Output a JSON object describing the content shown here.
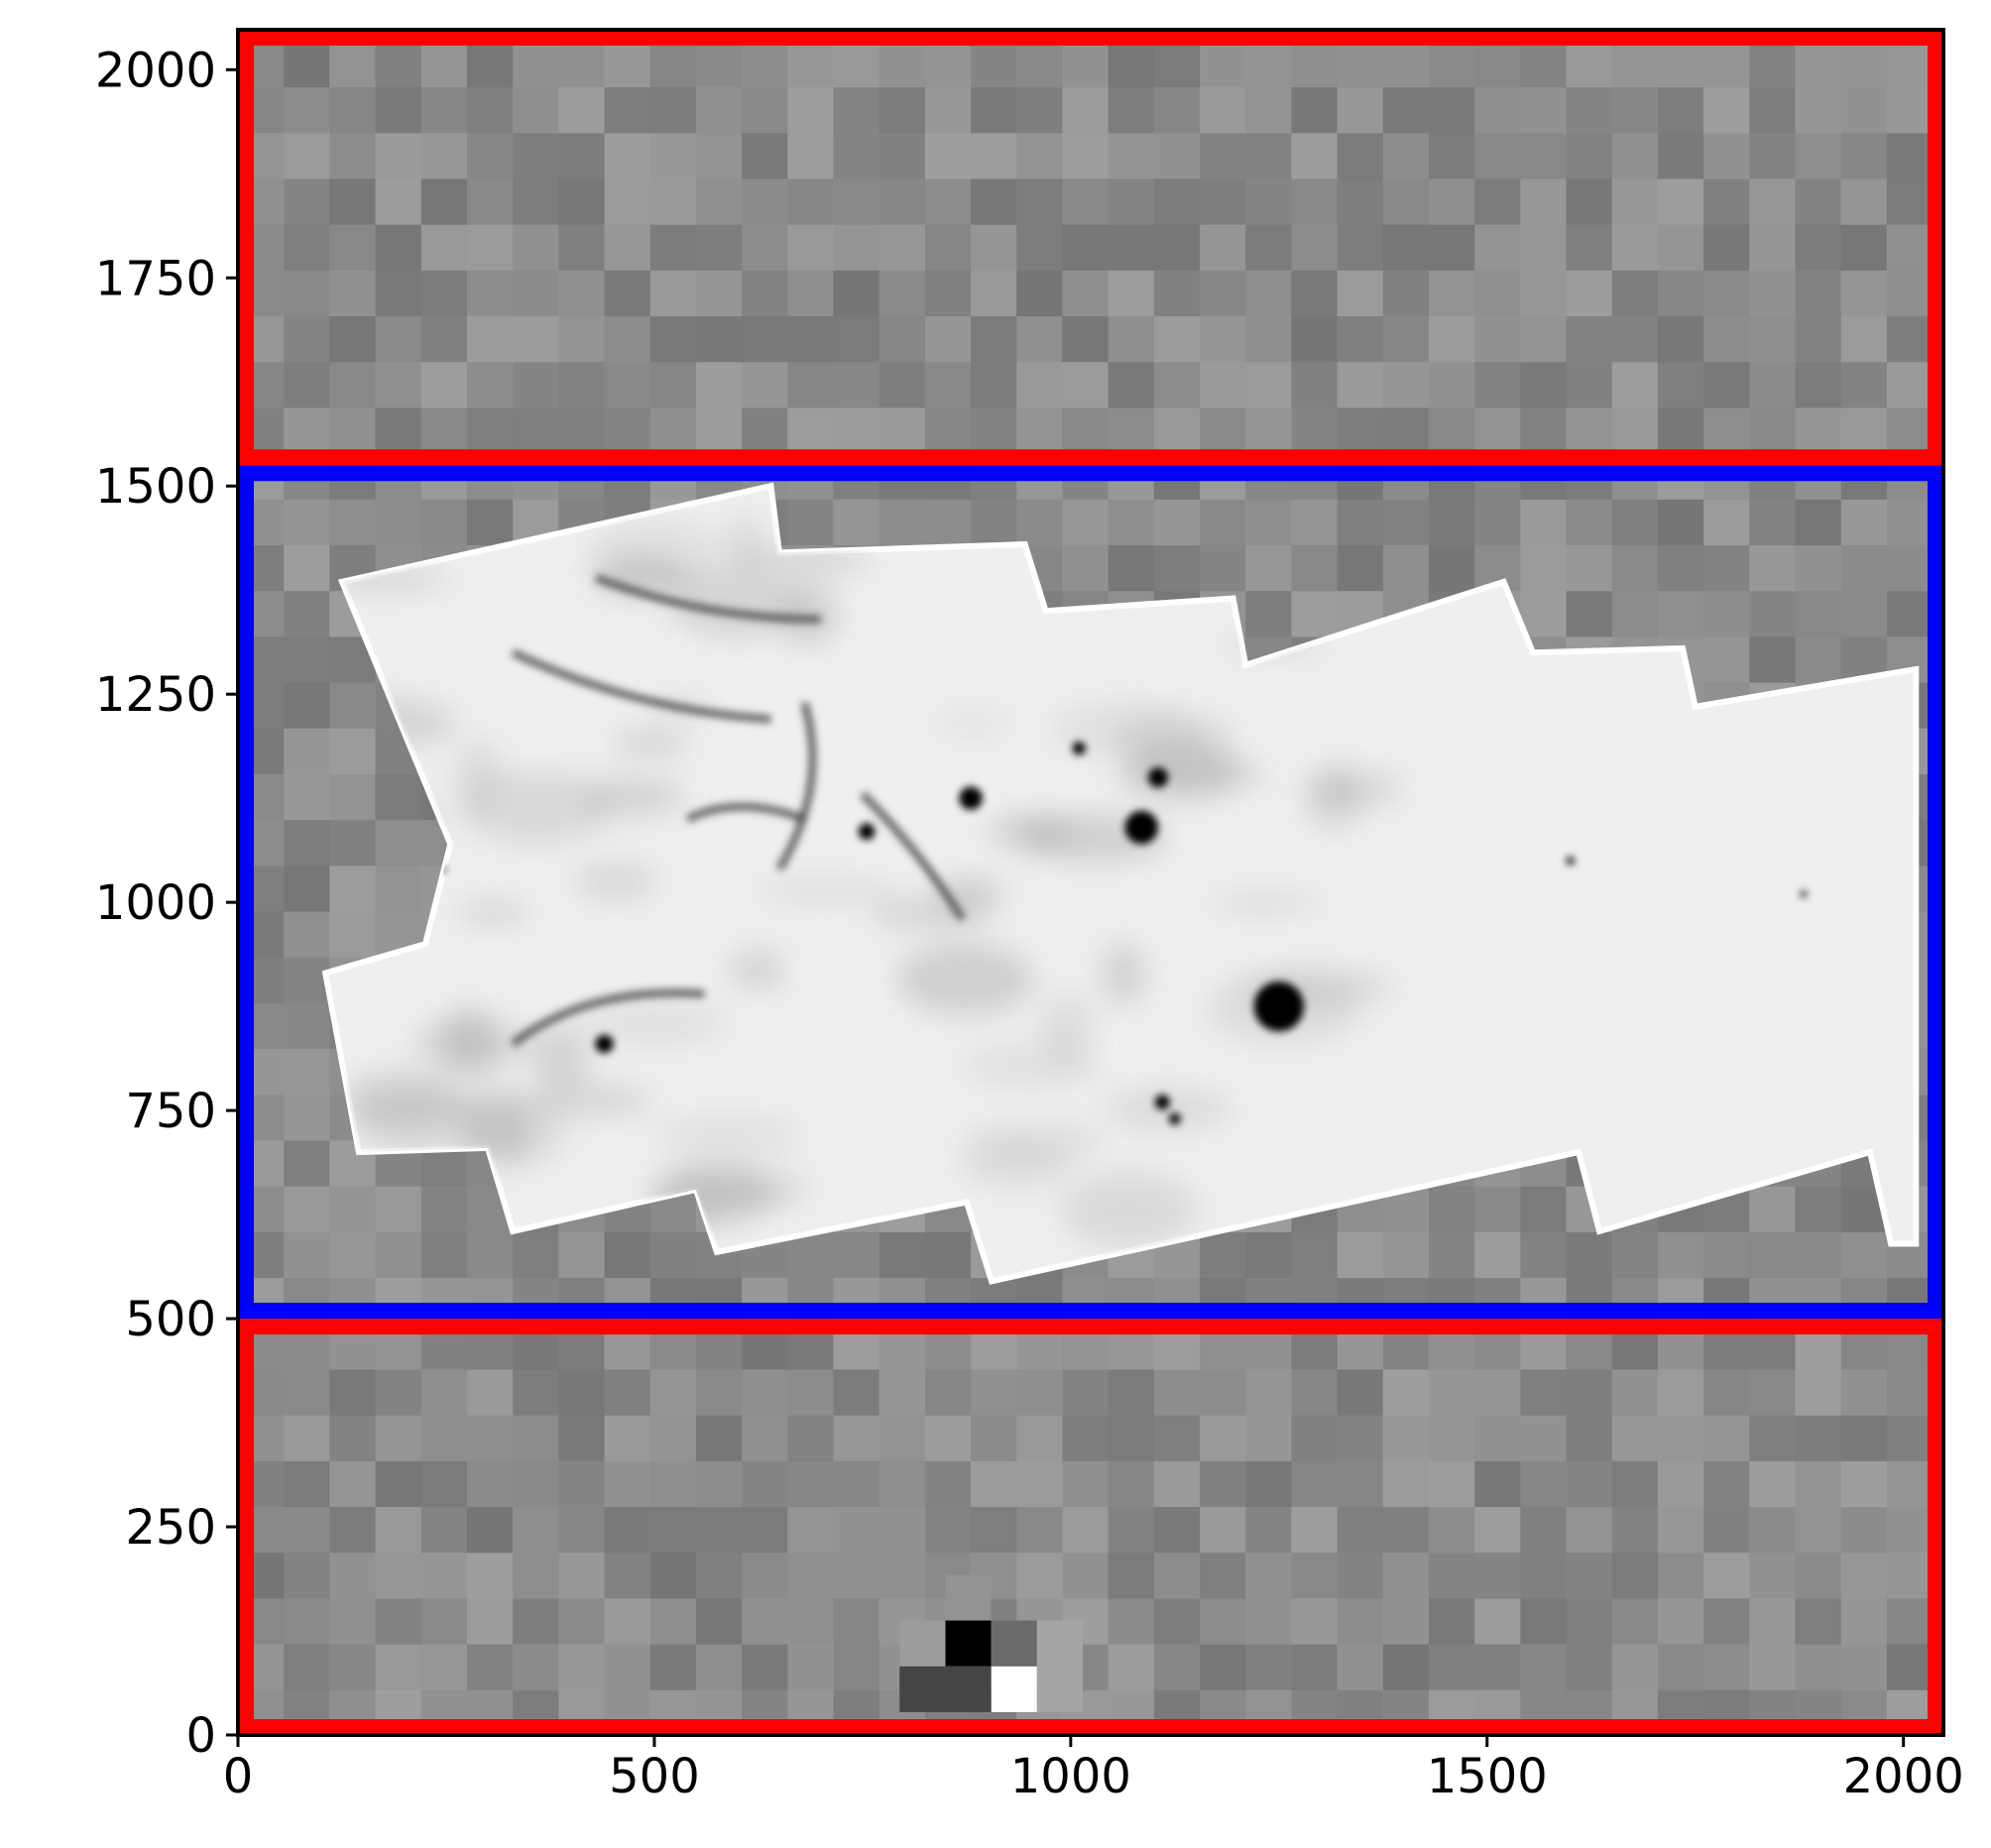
{
  "chart_data": {
    "type": "heatmap",
    "title": "",
    "xlabel": "",
    "ylabel": "",
    "xlim": [
      0,
      2048
    ],
    "ylim": [
      0,
      2048
    ],
    "x_ticks": [
      "0",
      "500",
      "1000",
      "1500",
      "2000"
    ],
    "x_tick_values": [
      0,
      500,
      1000,
      1500,
      2000
    ],
    "y_ticks": [
      "0",
      "250",
      "500",
      "750",
      "1000",
      "1250",
      "1500",
      "1750",
      "2000"
    ],
    "y_tick_values": [
      0,
      250,
      500,
      750,
      1000,
      1250,
      1500,
      1750,
      2000
    ],
    "colormap": "grayscale",
    "grid": false,
    "regions": [
      {
        "color": "#ff0000",
        "x0": 0,
        "x1": 2048,
        "y0": 0,
        "y1": 500
      },
      {
        "color": "#0000ff",
        "x0": 0,
        "x1": 2048,
        "y0": 500,
        "y1": 1525
      },
      {
        "color": "#ff0000",
        "x0": 0,
        "x1": 2048,
        "y0": 1525,
        "y1": 2048
      }
    ],
    "mosaic_outline": [
      [
        125,
        1385
      ],
      [
        640,
        1500
      ],
      [
        650,
        1420
      ],
      [
        945,
        1430
      ],
      [
        970,
        1350
      ],
      [
        1195,
        1365
      ],
      [
        1210,
        1285
      ],
      [
        1520,
        1385
      ],
      [
        1555,
        1300
      ],
      [
        1735,
        1305
      ],
      [
        1750,
        1235
      ],
      [
        2015,
        1280
      ],
      [
        2015,
        590
      ],
      [
        1985,
        590
      ],
      [
        1960,
        700
      ],
      [
        1635,
        605
      ],
      [
        1610,
        700
      ],
      [
        905,
        545
      ],
      [
        875,
        640
      ],
      [
        575,
        580
      ],
      [
        550,
        655
      ],
      [
        330,
        605
      ],
      [
        300,
        705
      ],
      [
        145,
        700
      ],
      [
        105,
        915
      ],
      [
        225,
        950
      ],
      [
        255,
        1070
      ]
    ],
    "dark_features": [
      {
        "x": 1250,
        "y": 875,
        "r": 30
      },
      {
        "x": 1085,
        "y": 1090,
        "r": 20
      },
      {
        "x": 1105,
        "y": 1150,
        "r": 12
      },
      {
        "x": 880,
        "y": 1125,
        "r": 14
      },
      {
        "x": 755,
        "y": 1085,
        "r": 10
      },
      {
        "x": 1110,
        "y": 760,
        "r": 9
      },
      {
        "x": 1125,
        "y": 740,
        "r": 7
      },
      {
        "x": 440,
        "y": 830,
        "r": 11
      },
      {
        "x": 1010,
        "y": 1185,
        "r": 8
      },
      {
        "x": 245,
        "y": 1040,
        "r": 4
      },
      {
        "x": 1600,
        "y": 1050,
        "r": 5
      },
      {
        "x": 1880,
        "y": 1010,
        "r": 4
      }
    ],
    "highlight_pixels": [
      {
        "x": 877,
        "y": 110,
        "shade": "#000000"
      },
      {
        "x": 932,
        "y": 55,
        "shade": "#ffffff"
      },
      {
        "x": 822,
        "y": 55,
        "shade": "#454545"
      },
      {
        "x": 877,
        "y": 55,
        "shade": "#454545"
      },
      {
        "x": 932,
        "y": 110,
        "shade": "#6b6b6b"
      },
      {
        "x": 987,
        "y": 110,
        "shade": "#a5a5a5"
      },
      {
        "x": 987,
        "y": 55,
        "shade": "#a5a5a5"
      },
      {
        "x": 822,
        "y": 110,
        "shade": "#9c9c9c"
      },
      {
        "x": 877,
        "y": 165,
        "shade": "#939393"
      }
    ]
  }
}
